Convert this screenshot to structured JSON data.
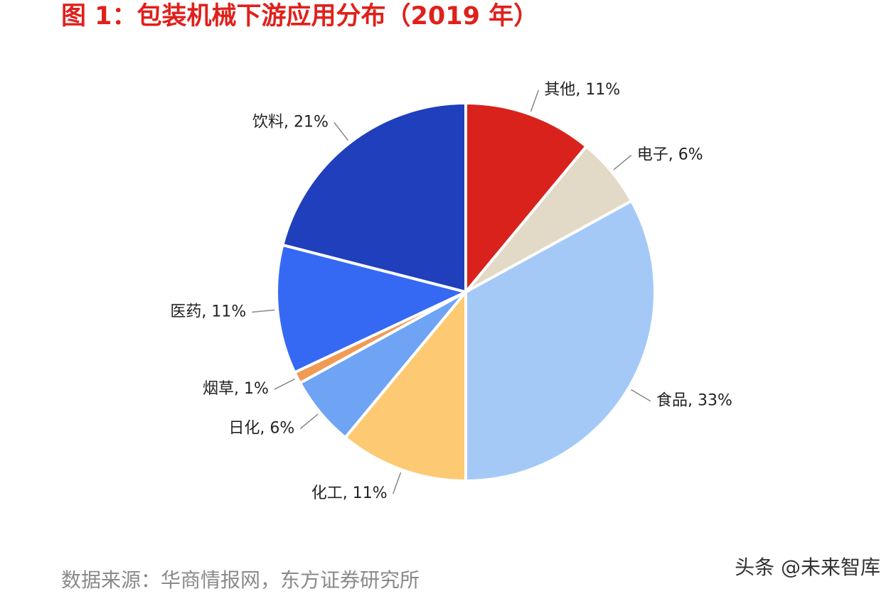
{
  "title": "图 1：包装机械下游应用分布（2019 年）",
  "chart_data": {
    "type": "pie",
    "categories": [
      "其他",
      "电子",
      "食品",
      "化工",
      "日化",
      "烟草",
      "医药",
      "饮料"
    ],
    "values": [
      11,
      6,
      33,
      11,
      6,
      1,
      11,
      21
    ],
    "value_labels": [
      "11%",
      "6%",
      "33%",
      "11%",
      "6%",
      "1%",
      "11%",
      "21%"
    ],
    "colors": [
      "#d9221c",
      "#e2d9c6",
      "#a4c9f6",
      "#fdc972",
      "#6fa3f4",
      "#f09a55",
      "#3569f4",
      "#1f3fbc"
    ]
  },
  "source": "数据来源：华商情报网，东方证券研究所",
  "watermark": "头条 @未来智库"
}
